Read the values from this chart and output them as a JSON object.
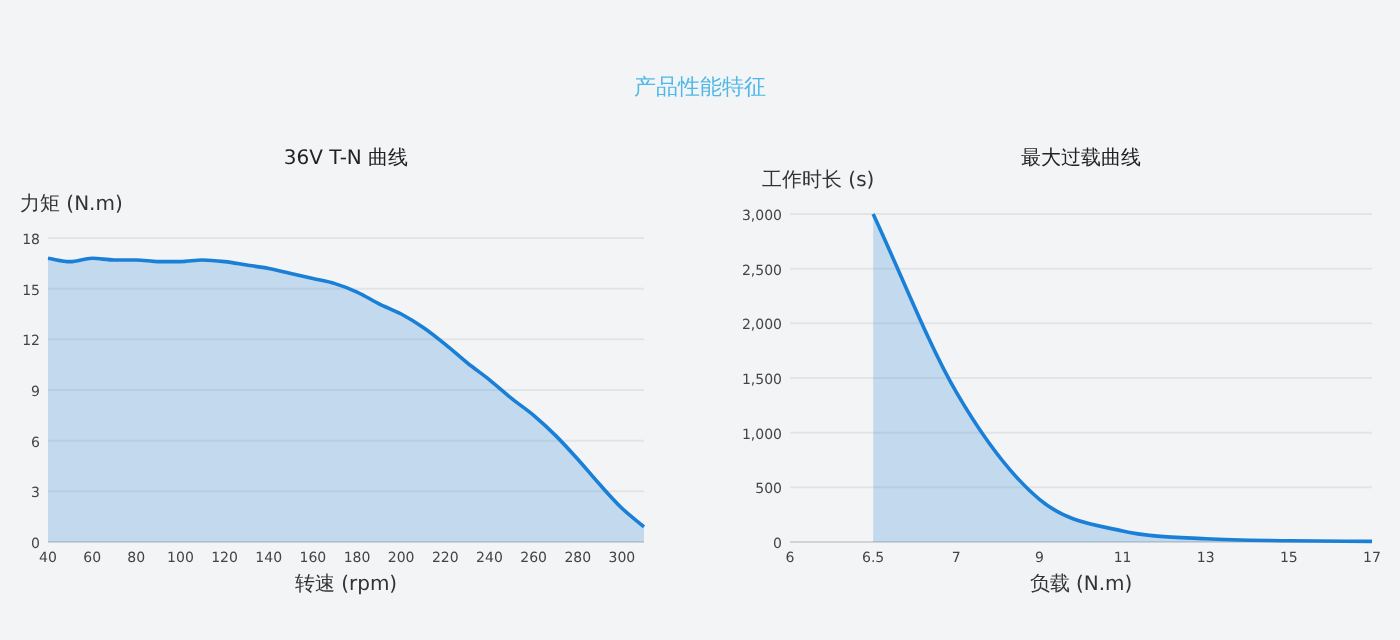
{
  "chart_data": [
    {
      "type": "area",
      "title": "36V T-N 曲线",
      "xlabel": "转速 (rpm)",
      "ylabel": "力矩 (N.m)",
      "annotations": [
        "产品性能特征"
      ],
      "x": [
        40,
        50,
        60,
        70,
        80,
        90,
        100,
        110,
        120,
        130,
        140,
        150,
        160,
        170,
        180,
        190,
        200,
        210,
        220,
        230,
        240,
        250,
        260,
        270,
        280,
        290,
        300,
        310
      ],
      "values": [
        16.8,
        16.6,
        16.8,
        16.7,
        16.7,
        16.6,
        16.6,
        16.7,
        16.6,
        16.4,
        16.2,
        15.9,
        15.6,
        15.3,
        14.8,
        14.1,
        13.5,
        12.7,
        11.7,
        10.6,
        9.6,
        8.5,
        7.5,
        6.3,
        4.9,
        3.4,
        2.0,
        0.9
      ],
      "color": "#1a7fd6",
      "xlim": [
        40,
        310
      ],
      "xticks": [
        40,
        60,
        80,
        100,
        120,
        140,
        160,
        180,
        200,
        220,
        240,
        260,
        280,
        300
      ],
      "ylim": [
        0,
        18
      ],
      "yticks": [
        0,
        3,
        6,
        9,
        12,
        15,
        18
      ],
      "grid": "y"
    },
    {
      "type": "area",
      "title": "最大过载曲线",
      "xlabel": "负载 (N.m)",
      "ylabel": "工作时长 (s)",
      "categories": [
        "6",
        "6.5",
        "7",
        "9",
        "11",
        "13",
        "15",
        "17"
      ],
      "values": [
        null,
        3000,
        1370,
        390,
        100,
        30,
        12,
        6
      ],
      "color": "#1a7fd6",
      "ylim": [
        0,
        3000
      ],
      "yticks": [
        {
          "value": 0,
          "label": "0"
        },
        {
          "value": 500,
          "label": "500"
        },
        {
          "value": 1000,
          "label": "1,000"
        },
        {
          "value": 1500,
          "label": "1,500"
        },
        {
          "value": 2000,
          "label": "2,000"
        },
        {
          "value": 2500,
          "label": "2,500"
        },
        {
          "value": 3000,
          "label": "3,000"
        }
      ],
      "grid": "y"
    }
  ]
}
